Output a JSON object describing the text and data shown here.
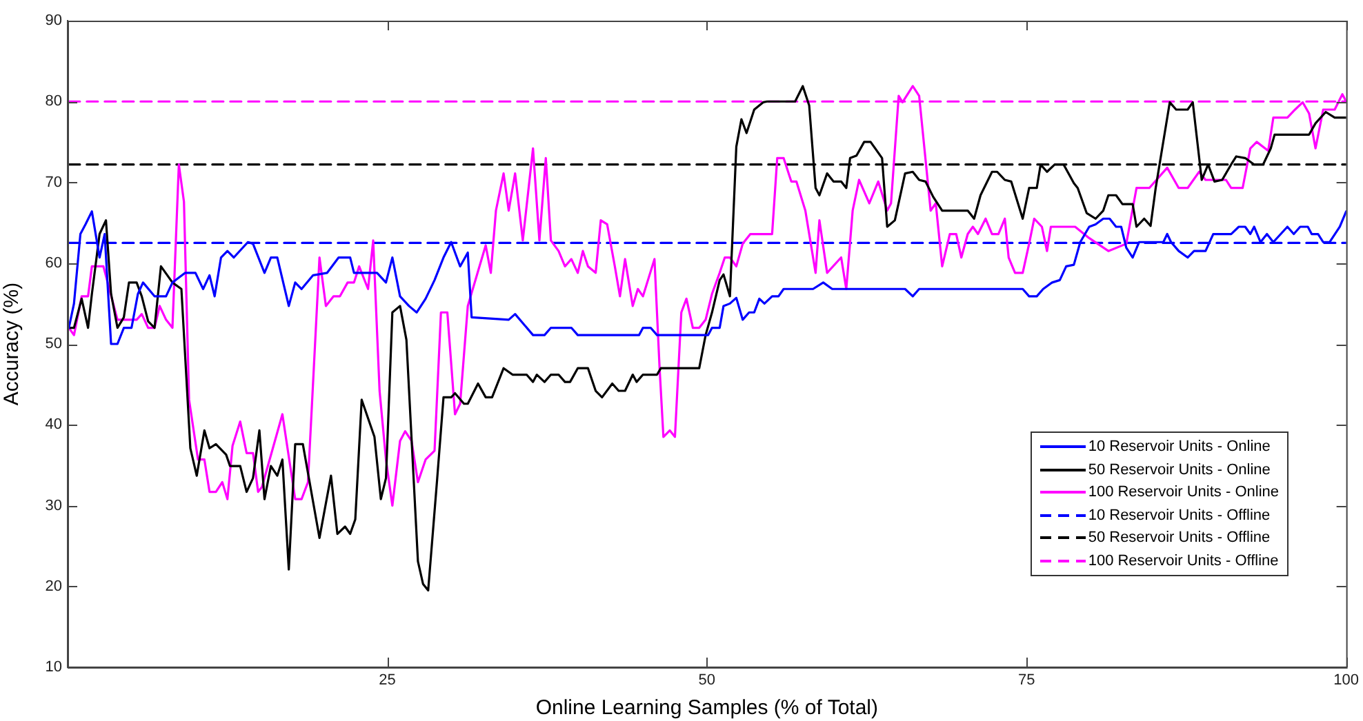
{
  "chart_data": {
    "type": "line",
    "xlabel": "Online Learning Samples (% of Total)",
    "ylabel": "Accuracy (%)",
    "xlim": [
      0,
      100
    ],
    "xticks": [
      25,
      50,
      75,
      100
    ],
    "ylim": [
      10,
      90
    ],
    "yticks": [
      10,
      20,
      30,
      40,
      50,
      60,
      70,
      80,
      90
    ],
    "grid": false,
    "legend": "bottom right",
    "marker": "none",
    "line_style": "solid",
    "series": [
      {
        "name": "10 Reservoir Units - Online",
        "color": "#0000ff",
        "x": [
          0.1,
          0.5,
          1,
          1.4,
          1.9,
          2.5,
          2.9,
          3.4,
          3.9,
          4.4,
          5,
          5.5,
          5.9,
          6.8,
          7.7,
          8.2,
          9.2,
          10,
          10.6,
          11.1,
          11.5,
          12,
          12.5,
          13,
          14.1,
          14.5,
          15.4,
          15.9,
          16.4,
          17.3,
          17.8,
          18.3,
          19.2,
          20.3,
          21.2,
          22.1,
          22.4,
          24.2,
          24.9,
          25.4,
          26,
          26.7,
          27.3,
          28,
          28.7,
          29.4,
          30,
          30.7,
          31.3,
          31.6,
          34.5,
          35,
          36.4,
          37.3,
          37.8,
          39.4,
          39.9,
          44.7,
          45,
          45.6,
          46.1,
          50.1,
          50.4,
          51,
          51.3,
          51.8,
          52.3,
          52.8,
          53.3,
          53.7,
          54.1,
          54.5,
          55.1,
          55.6,
          56,
          58.3,
          59.1,
          59.8,
          65.5,
          66.1,
          66.6,
          74.7,
          75.2,
          75.8,
          76.3,
          77,
          77.6,
          78.1,
          78.7,
          79.2,
          79.9,
          80.4,
          81,
          81.5,
          82,
          82.4,
          82.8,
          83.3,
          83.8,
          85.7,
          86,
          86.3,
          86.9,
          87.6,
          88.1,
          89,
          89.6,
          91,
          91.6,
          92.1,
          92.5,
          92.8,
          93.3,
          93.8,
          94.3,
          95.4,
          95.9,
          96.4,
          97,
          97.3,
          97.8,
          98.2,
          98.7,
          99.5,
          100
        ],
        "values": [
          52,
          55,
          63.6,
          64.8,
          66.4,
          60.7,
          63.6,
          50,
          50,
          52,
          52,
          56.2,
          57.6,
          55.9,
          55.9,
          57.6,
          58.8,
          58.8,
          56.8,
          58.5,
          55.9,
          60.7,
          61.5,
          60.7,
          62.6,
          62.4,
          58.8,
          60.7,
          60.7,
          54.7,
          57.6,
          56.8,
          58.5,
          58.8,
          60.7,
          60.7,
          58.8,
          58.8,
          57.6,
          60.7,
          55.9,
          54.7,
          53.9,
          55.6,
          57.9,
          60.7,
          62.6,
          59.6,
          61.3,
          53.3,
          53,
          53.7,
          51.1,
          51.1,
          52,
          52,
          51.1,
          51.1,
          52,
          52,
          51.1,
          51.1,
          52,
          52,
          54.7,
          55,
          55.7,
          53,
          53.9,
          53.9,
          55.6,
          55,
          55.9,
          55.9,
          56.8,
          56.8,
          57.6,
          56.8,
          56.8,
          55.9,
          56.8,
          56.8,
          55.9,
          55.9,
          56.8,
          57.6,
          57.9,
          59.6,
          59.8,
          62.6,
          64.5,
          64.8,
          65.5,
          65.5,
          64.5,
          64.5,
          61.9,
          60.7,
          62.6,
          62.6,
          63.6,
          62.6,
          61.5,
          60.7,
          61.5,
          61.5,
          63.6,
          63.6,
          64.5,
          64.5,
          63.6,
          64.5,
          62.6,
          63.6,
          62.6,
          64.5,
          63.6,
          64.5,
          64.5,
          63.6,
          63.6,
          62.6,
          62.6,
          64.5,
          66.4
        ]
      },
      {
        "name": "50 Reservoir Units - Online",
        "color": "#000000",
        "x": [
          0.1,
          0.5,
          1.1,
          1.6,
          1.9,
          2.5,
          3,
          3.4,
          3.9,
          4.4,
          4.8,
          5.4,
          5.8,
          6.3,
          6.8,
          7.3,
          7.8,
          8.2,
          8.9,
          9.6,
          10.1,
          10.7,
          11.1,
          11.6,
          12.4,
          12.7,
          13.5,
          14,
          14.5,
          15,
          15.4,
          15.9,
          16.4,
          16.8,
          17.3,
          17.8,
          18.4,
          19.7,
          20.6,
          21.1,
          21.7,
          22.1,
          22.5,
          23,
          24,
          24.5,
          24.9,
          25.4,
          26,
          26.5,
          27.4,
          27.8,
          28.2,
          28.9,
          29.4,
          30,
          30.3,
          31,
          31.3,
          32.1,
          32.7,
          33.2,
          34.1,
          34.8,
          35.9,
          36.4,
          36.7,
          37.3,
          37.8,
          38.4,
          38.9,
          39.3,
          39.9,
          40.7,
          41.3,
          41.8,
          42.6,
          43.1,
          43.6,
          44.2,
          44.5,
          45,
          46.1,
          46.4,
          49.4,
          49.9,
          50.4,
          51,
          51.3,
          51.8,
          52.3,
          52.7,
          53.1,
          53.7,
          54.4,
          54.7,
          56.9,
          57.5,
          58,
          58.5,
          58.8,
          59.4,
          59.9,
          60.5,
          60.9,
          61.2,
          61.7,
          62.3,
          62.8,
          63.7,
          64.1,
          64.7,
          65.5,
          66.1,
          66.6,
          67.1,
          67.7,
          68.4,
          70.4,
          70.9,
          71.4,
          72.3,
          72.7,
          73.3,
          73.8,
          74.7,
          75.2,
          75.8,
          76.1,
          76.6,
          77.2,
          77.9,
          78.7,
          79,
          79.7,
          80.4,
          81,
          81.4,
          82,
          82.5,
          83.3,
          83.6,
          84.2,
          84.7,
          85.1,
          86.2,
          86.7,
          87.6,
          88,
          88.7,
          89.2,
          89.7,
          90.3,
          91,
          91.4,
          92.1,
          92.8,
          93.5,
          94.1,
          94.4,
          97.1,
          97.6,
          98.4,
          99.1,
          100
        ],
        "values": [
          52,
          52,
          55.6,
          52,
          56.2,
          63.6,
          65.3,
          56.2,
          52,
          53.3,
          57.6,
          57.6,
          55.9,
          52.8,
          52,
          59.6,
          58.5,
          57.6,
          56.8,
          37.1,
          33.7,
          39.3,
          37.1,
          37.6,
          36.3,
          34.9,
          34.9,
          31.7,
          33.4,
          39.3,
          30.8,
          34.9,
          33.7,
          35.7,
          22.1,
          37.6,
          37.6,
          26,
          33.7,
          26.5,
          27.4,
          26.5,
          28.3,
          43.1,
          38.5,
          30.8,
          33.4,
          53.9,
          54.7,
          50.5,
          23.1,
          20.3,
          19.5,
          33.2,
          43.4,
          43.4,
          43.9,
          42.6,
          42.6,
          45.1,
          43.4,
          43.4,
          47,
          46.2,
          46.2,
          45.3,
          46.2,
          45.3,
          46.2,
          46.2,
          45.3,
          45.3,
          47,
          47,
          44.2,
          43.4,
          45.1,
          44.2,
          44.2,
          46.2,
          45.3,
          46.2,
          46.2,
          47,
          47,
          51.1,
          53.9,
          57.9,
          58.6,
          55.9,
          74.4,
          77.8,
          76.1,
          79,
          79.9,
          80,
          80,
          81.9,
          79.5,
          69.3,
          68.4,
          71.1,
          70.1,
          70.1,
          69.3,
          73,
          73.3,
          75,
          75,
          73,
          64.5,
          65.3,
          71.1,
          71.3,
          70.3,
          70.1,
          68.2,
          66.5,
          66.5,
          65.5,
          68.4,
          71.3,
          71.3,
          70.3,
          70.1,
          65.5,
          69.3,
          69.3,
          72.2,
          71.3,
          72.2,
          72.2,
          69.9,
          69.3,
          66.2,
          65.5,
          66.5,
          68.4,
          68.4,
          67.3,
          67.3,
          64.5,
          65.5,
          64.6,
          69.3,
          79.9,
          79,
          79,
          79.9,
          70.3,
          72.2,
          70.1,
          70.3,
          72.2,
          73.2,
          73,
          72.2,
          72.2,
          74.2,
          75.9,
          75.9,
          77.3,
          78.7,
          78,
          78
        ]
      },
      {
        "name": "100 Reservoir Units - Online",
        "color": "#ff00ff",
        "x": [
          0.1,
          0.5,
          1.1,
          1.6,
          1.9,
          2.8,
          3.9,
          5.4,
          5.8,
          6.3,
          6.8,
          7.2,
          7.7,
          8.2,
          8.7,
          9.1,
          9.5,
          10.2,
          10.7,
          11.1,
          11.6,
          12.1,
          12.5,
          12.9,
          13.5,
          14,
          14.5,
          14.9,
          15.2,
          16.8,
          17.8,
          18.3,
          18.8,
          19.7,
          20.2,
          20.8,
          21.3,
          21.9,
          22.4,
          22.8,
          23.5,
          23.9,
          24.4,
          24.9,
          25.4,
          26,
          26.4,
          26.9,
          27.4,
          28,
          28.7,
          29.2,
          29.7,
          30.3,
          30.7,
          31.3,
          32.1,
          32.7,
          33.1,
          33.5,
          34.1,
          34.5,
          35,
          35.6,
          36.4,
          36.9,
          37.4,
          37.8,
          38.4,
          38.9,
          39.4,
          39.9,
          40.3,
          40.7,
          41.3,
          41.7,
          42.2,
          42.8,
          43.2,
          43.6,
          44.2,
          44.6,
          45,
          45.9,
          46.3,
          46.6,
          47.1,
          47.5,
          48,
          48.4,
          48.9,
          49.4,
          49.9,
          50.4,
          51,
          51.4,
          51.8,
          52.3,
          52.8,
          53.4,
          55.1,
          55.5,
          56,
          56.6,
          57,
          57.7,
          58.5,
          58.8,
          59.4,
          60.5,
          60.9,
          61.4,
          61.9,
          62.7,
          63.4,
          64.1,
          64.4,
          65,
          65.3,
          66.1,
          66.6,
          67.5,
          67.9,
          68.4,
          69,
          69.5,
          69.9,
          70.4,
          70.8,
          71.2,
          71.8,
          72.3,
          72.8,
          73.3,
          73.6,
          74.1,
          74.7,
          75.2,
          75.6,
          76.2,
          76.6,
          76.9,
          78.8,
          79.9,
          81.4,
          82.8,
          83.6,
          84.6,
          86,
          86.9,
          87.6,
          88.5,
          89,
          90.6,
          91,
          91.9,
          92.5,
          93,
          93.9,
          94.3,
          95.4,
          96,
          96.6,
          97.1,
          97.6,
          98.2,
          99.1,
          99.7,
          100
        ],
        "values": [
          52,
          51.1,
          55.9,
          55.9,
          59.6,
          59.6,
          53,
          53,
          53.7,
          52,
          52,
          54.7,
          53,
          52,
          72.2,
          67.6,
          43.1,
          35.7,
          35.7,
          31.7,
          31.7,
          32.9,
          30.8,
          37.4,
          40.4,
          36.5,
          36.5,
          31.7,
          32.3,
          41.3,
          30.8,
          30.8,
          32.9,
          60.7,
          54.7,
          55.9,
          55.9,
          57.6,
          57.6,
          59.6,
          56.8,
          62.8,
          44.2,
          35.7,
          30,
          38,
          39.2,
          38,
          32.9,
          35.7,
          36.8,
          53.9,
          53.9,
          41.3,
          42.6,
          54.7,
          59,
          62.2,
          58.8,
          66.5,
          71.1,
          66.5,
          71.1,
          62.8,
          74.2,
          62.8,
          73,
          62.8,
          61.5,
          59.6,
          60.5,
          58.8,
          61.5,
          59.6,
          58.8,
          65.3,
          64.8,
          59.6,
          55.9,
          60.5,
          54.7,
          56.8,
          55.9,
          60.5,
          47,
          38.5,
          39.3,
          38.5,
          53.9,
          55.6,
          52,
          52,
          53,
          56.2,
          58.8,
          60.7,
          60.7,
          59.6,
          62.4,
          63.6,
          63.6,
          73,
          73,
          70.1,
          70.1,
          66.5,
          58.8,
          65.3,
          58.8,
          60.7,
          56.8,
          66.5,
          70.3,
          67.4,
          70.1,
          66.5,
          67.4,
          80.7,
          79.9,
          81.9,
          80.7,
          66.5,
          67.4,
          59.6,
          63.6,
          63.6,
          60.7,
          63.6,
          64.5,
          63.6,
          65.5,
          63.6,
          63.6,
          65.5,
          60.7,
          58.8,
          58.8,
          62.4,
          65.5,
          64.5,
          61.5,
          64.5,
          64.5,
          63.1,
          61.5,
          62.4,
          69.3,
          69.3,
          71.8,
          69.3,
          69.3,
          71.3,
          70.3,
          70.3,
          69.3,
          69.3,
          74.2,
          75,
          73.9,
          78,
          78,
          79,
          79.9,
          78.5,
          74.2,
          79,
          79,
          80.9,
          80
        ]
      },
      {
        "name": "10 Reservoir Units - Offline",
        "color": "#0000ff",
        "line_style": "dashed",
        "x": [
          0.1,
          100
        ],
        "values": [
          62.5,
          62.5
        ]
      },
      {
        "name": "50 Reservoir Units - Offline",
        "color": "#000000",
        "line_style": "dashed",
        "x": [
          0.1,
          100
        ],
        "values": [
          72.2,
          72.2
        ]
      },
      {
        "name": "100 Reservoir Units - Offline",
        "color": "#ff00ff",
        "line_style": "dashed",
        "x": [
          0.1,
          100
        ],
        "values": [
          80,
          80
        ]
      }
    ]
  }
}
